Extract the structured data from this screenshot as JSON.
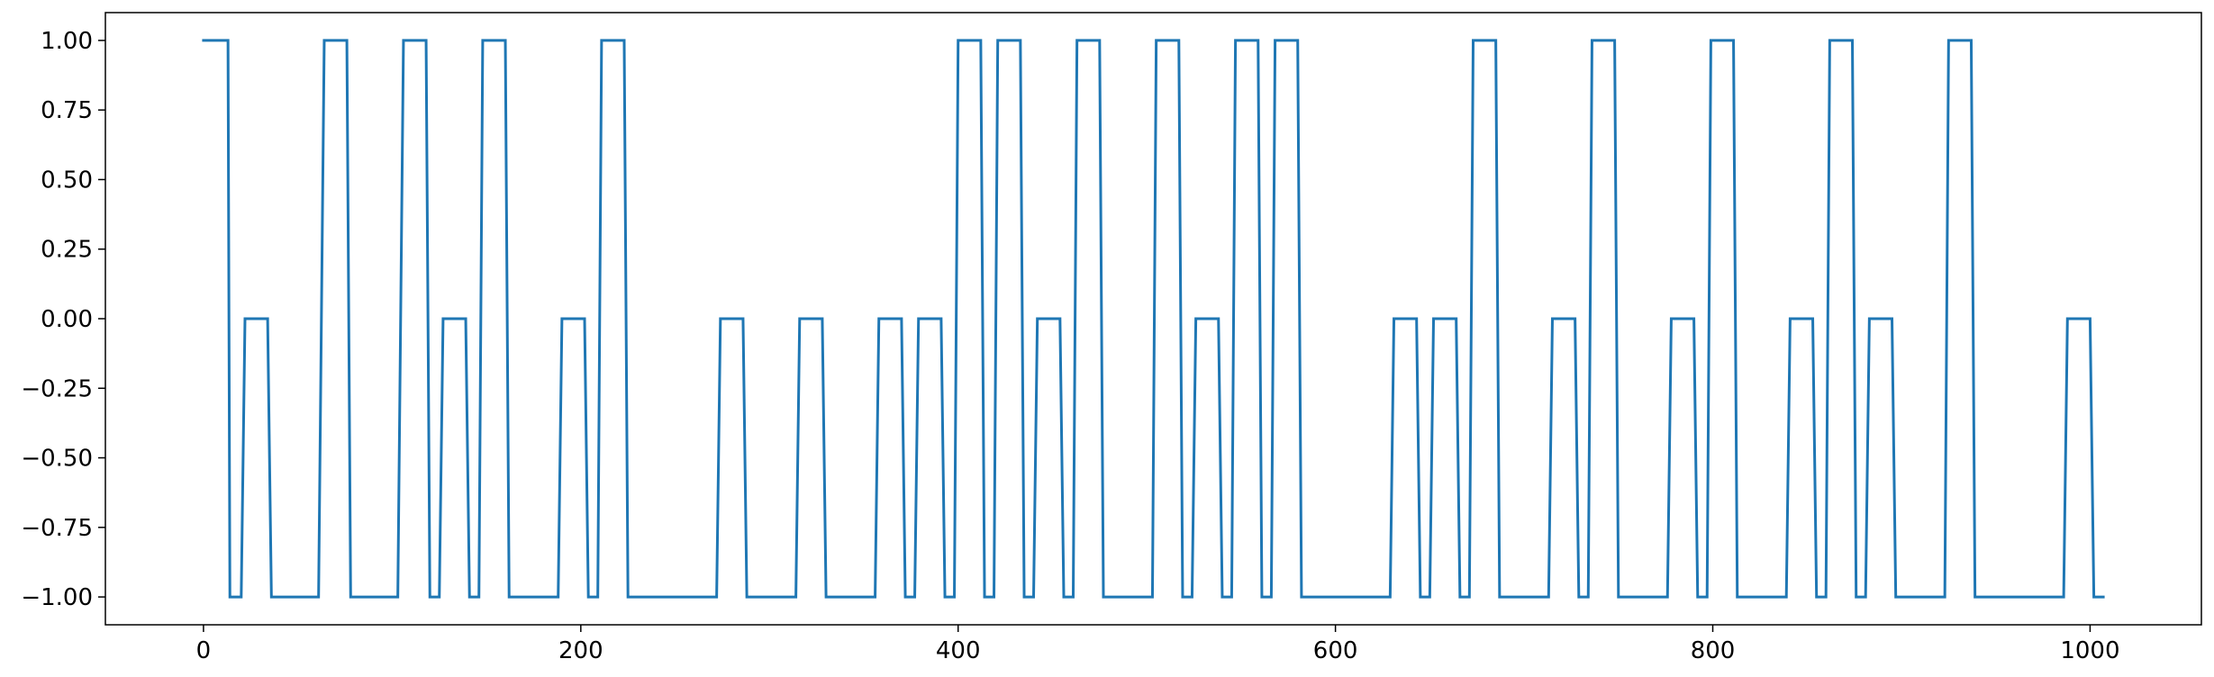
{
  "chart_data": {
    "type": "line",
    "title": "",
    "xlabel": "",
    "ylabel": "",
    "xlim": [
      -52,
      1059
    ],
    "ylim": [
      -1.1,
      1.1
    ],
    "grid": false,
    "legend": "none",
    "x_ticks": [
      0,
      200,
      400,
      600,
      800,
      1000
    ],
    "x_tick_labels": [
      "0",
      "200",
      "400",
      "600",
      "800",
      "1000"
    ],
    "y_ticks": [
      1.0,
      0.75,
      0.5,
      0.25,
      0.0,
      -0.25,
      -0.5,
      -0.75,
      -1.0
    ],
    "y_tick_labels": [
      "1.00",
      "0.75",
      "0.50",
      "0.25",
      "0.00",
      "−0.25",
      "−0.50",
      "−0.75",
      "−1.00"
    ],
    "series": [
      {
        "color": "#1f77b4",
        "step_points": [
          [
            0,
            1
          ],
          [
            13,
            1
          ],
          [
            14,
            -1
          ],
          [
            20,
            -1
          ],
          [
            22,
            0
          ],
          [
            34,
            0
          ],
          [
            36,
            -1
          ],
          [
            61,
            -1
          ],
          [
            64,
            1
          ],
          [
            76,
            1
          ],
          [
            78,
            -1
          ],
          [
            103,
            -1
          ],
          [
            106,
            1
          ],
          [
            118,
            1
          ],
          [
            120,
            -1
          ],
          [
            125,
            -1
          ],
          [
            127,
            0
          ],
          [
            139,
            0
          ],
          [
            141,
            -1
          ],
          [
            146,
            -1
          ],
          [
            148,
            1
          ],
          [
            160,
            1
          ],
          [
            162,
            -1
          ],
          [
            188,
            -1
          ],
          [
            190,
            0
          ],
          [
            202,
            0
          ],
          [
            204,
            -1
          ],
          [
            209,
            -1
          ],
          [
            211,
            1
          ],
          [
            223,
            1
          ],
          [
            225,
            -1
          ],
          [
            272,
            -1
          ],
          [
            274,
            0
          ],
          [
            286,
            0
          ],
          [
            288,
            -1
          ],
          [
            314,
            -1
          ],
          [
            316,
            0
          ],
          [
            328,
            0
          ],
          [
            330,
            -1
          ],
          [
            356,
            -1
          ],
          [
            358,
            0
          ],
          [
            370,
            0
          ],
          [
            372,
            -1
          ],
          [
            377,
            -1
          ],
          [
            379,
            0
          ],
          [
            391,
            0
          ],
          [
            393,
            -1
          ],
          [
            398,
            -1
          ],
          [
            400,
            1
          ],
          [
            412,
            1
          ],
          [
            414,
            -1
          ],
          [
            419,
            -1
          ],
          [
            421,
            1
          ],
          [
            433,
            1
          ],
          [
            435,
            -1
          ],
          [
            440,
            -1
          ],
          [
            442,
            0
          ],
          [
            454,
            0
          ],
          [
            456,
            -1
          ],
          [
            461,
            -1
          ],
          [
            463,
            1
          ],
          [
            475,
            1
          ],
          [
            477,
            -1
          ],
          [
            503,
            -1
          ],
          [
            505,
            1
          ],
          [
            517,
            1
          ],
          [
            519,
            -1
          ],
          [
            524,
            -1
          ],
          [
            526,
            0
          ],
          [
            538,
            0
          ],
          [
            540,
            -1
          ],
          [
            545,
            -1
          ],
          [
            547,
            1
          ],
          [
            559,
            1
          ],
          [
            561,
            -1
          ],
          [
            566,
            -1
          ],
          [
            568,
            1
          ],
          [
            580,
            1
          ],
          [
            582,
            -1
          ],
          [
            629,
            -1
          ],
          [
            631,
            0
          ],
          [
            643,
            0
          ],
          [
            645,
            -1
          ],
          [
            650,
            -1
          ],
          [
            652,
            0
          ],
          [
            664,
            0
          ],
          [
            666,
            -1
          ],
          [
            671,
            -1
          ],
          [
            673,
            1
          ],
          [
            685,
            1
          ],
          [
            687,
            -1
          ],
          [
            713,
            -1
          ],
          [
            715,
            0
          ],
          [
            727,
            0
          ],
          [
            729,
            -1
          ],
          [
            734,
            -1
          ],
          [
            736,
            1
          ],
          [
            748,
            1
          ],
          [
            750,
            -1
          ],
          [
            776,
            -1
          ],
          [
            778,
            0
          ],
          [
            790,
            0
          ],
          [
            792,
            -1
          ],
          [
            797,
            -1
          ],
          [
            799,
            1
          ],
          [
            811,
            1
          ],
          [
            813,
            -1
          ],
          [
            839,
            -1
          ],
          [
            841,
            0
          ],
          [
            853,
            0
          ],
          [
            855,
            -1
          ],
          [
            860,
            -1
          ],
          [
            862,
            1
          ],
          [
            874,
            1
          ],
          [
            876,
            -1
          ],
          [
            881,
            -1
          ],
          [
            883,
            0
          ],
          [
            895,
            0
          ],
          [
            897,
            -1
          ],
          [
            923,
            -1
          ],
          [
            925,
            1
          ],
          [
            937,
            1
          ],
          [
            939,
            -1
          ],
          [
            986,
            -1
          ],
          [
            988,
            0
          ],
          [
            1000,
            0
          ],
          [
            1002,
            -1
          ],
          [
            1007,
            -1
          ]
        ]
      }
    ]
  }
}
